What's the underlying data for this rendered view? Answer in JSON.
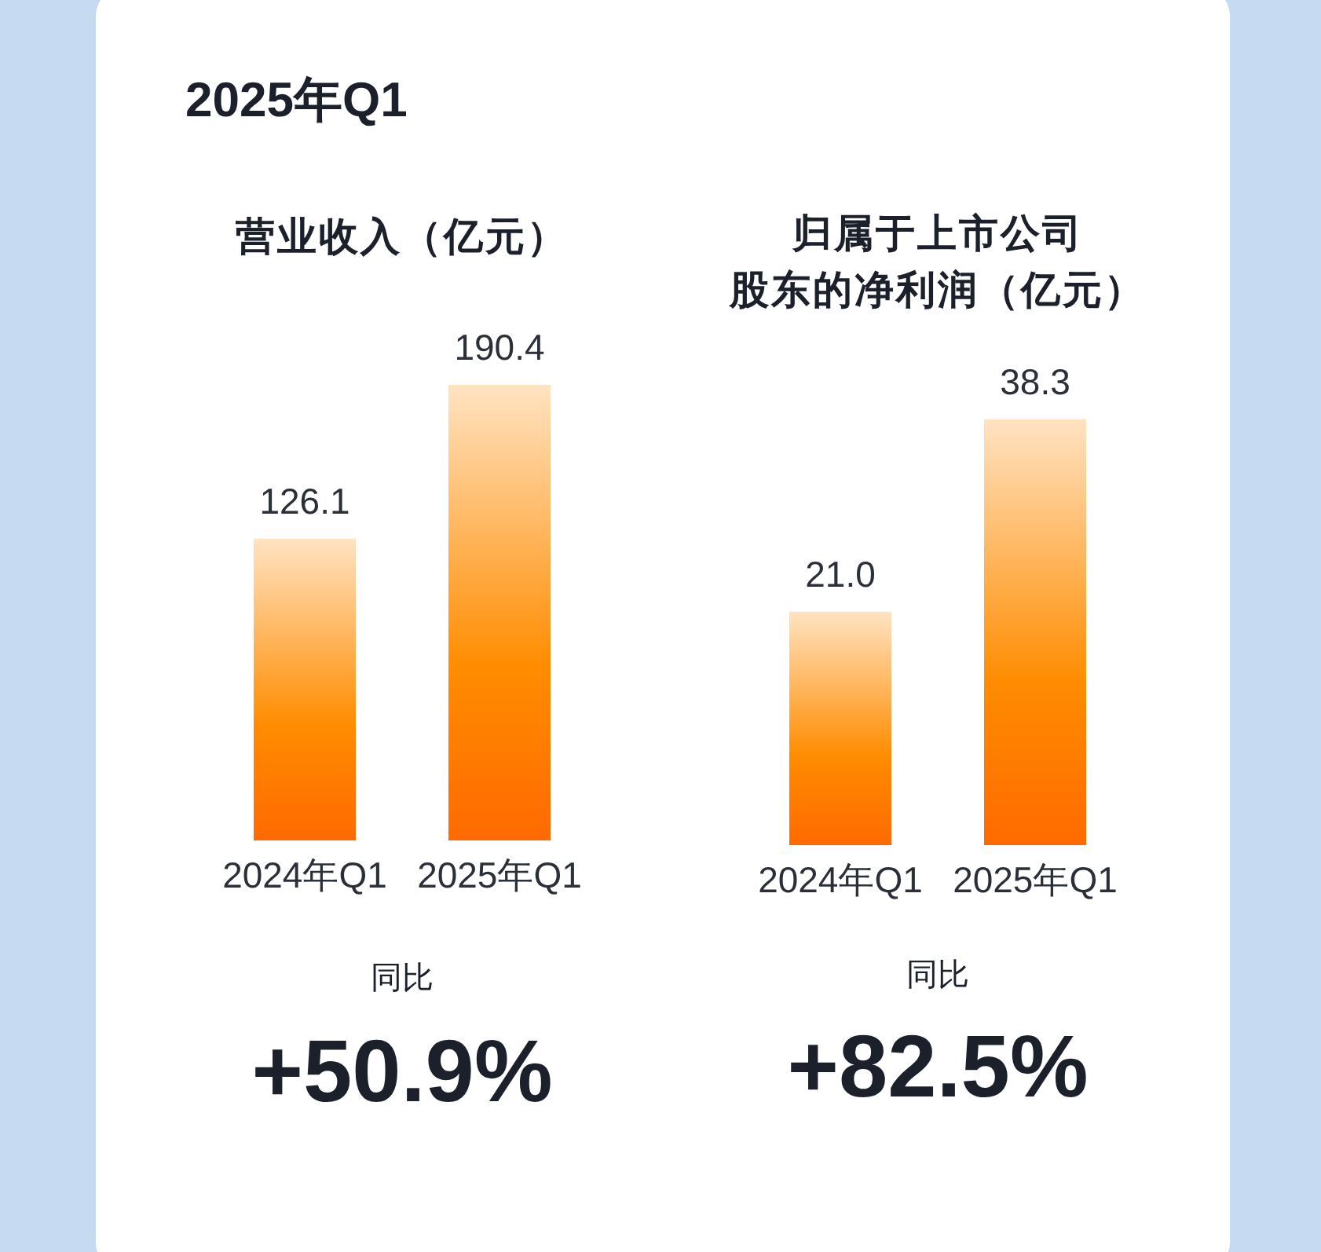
{
  "chart_data": [
    {
      "type": "other",
      "title": "2025年Q1"
    },
    {
      "type": "bar",
      "title": "营业收入（亿元）",
      "categories": [
        "2024年Q1",
        "2025年Q1"
      ],
      "values": [
        126.1,
        190.4
      ],
      "value_labels": [
        "126.1",
        "190.4"
      ],
      "color": "#ff8c00",
      "annotations": [
        "同比",
        "+50.9%"
      ]
    },
    {
      "type": "bar",
      "title": "归属于上市公司股东的净利润（亿元）",
      "categories": [
        "2024年Q1",
        "2025年Q1"
      ],
      "values": [
        21.0,
        38.3
      ],
      "value_labels": [
        "21.0",
        "38.3"
      ],
      "color": "#ff8c00",
      "annotations": [
        "同比",
        "+82.5%"
      ]
    }
  ]
}
